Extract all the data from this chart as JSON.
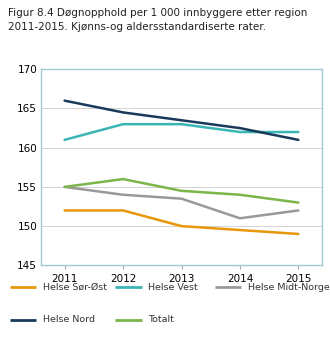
{
  "title": "Figur 8.4 Døgnopphold per 1 000 innbyggere etter region\n2011-2015. Kjønns-og aldersstandardiserte rater.",
  "years": [
    2011,
    2012,
    2013,
    2014,
    2015
  ],
  "series": {
    "Helse Sør-Øst": [
      152.0,
      152.0,
      150.0,
      149.5,
      149.0
    ],
    "Helse Vest": [
      161.0,
      163.0,
      163.0,
      162.0,
      162.0
    ],
    "Helse Midt-Norge": [
      155.0,
      154.0,
      153.5,
      151.0,
      152.0
    ],
    "Helse Nord": [
      166.0,
      164.5,
      163.5,
      162.5,
      161.0
    ],
    "Totalt": [
      155.0,
      156.0,
      154.5,
      154.0,
      153.0
    ]
  },
  "colors": {
    "Helse Sør-Øst": "#e8960a",
    "Helse Vest": "#3ab5b5",
    "Helse Midt-Norge": "#999999",
    "Helse Nord": "#1a3a5c",
    "Totalt": "#7ab648"
  },
  "ylim": [
    145,
    170
  ],
  "yticks": [
    145,
    150,
    155,
    160,
    165,
    170
  ],
  "background_title": "#d5d5d5",
  "background_plot": "#ffffff",
  "border_color": "#a0c8d0",
  "title_fontsize": 7.5,
  "tick_fontsize": 7.5,
  "legend_fontsize": 6.8,
  "linewidth": 1.8
}
